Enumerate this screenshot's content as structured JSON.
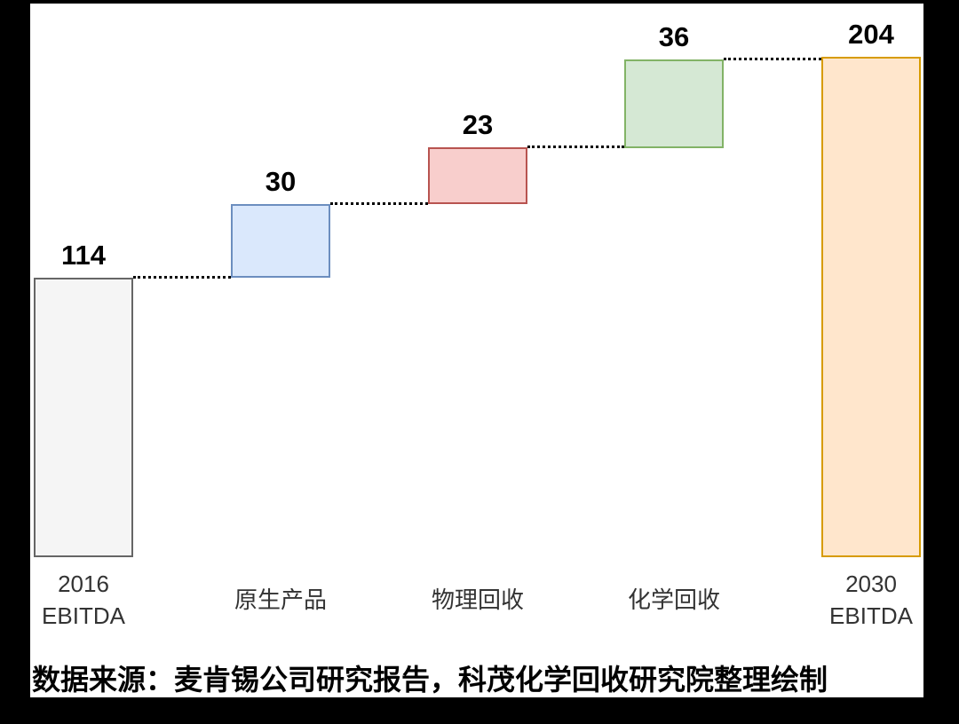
{
  "page": {
    "background": "#000000",
    "panel_background": "#ffffff"
  },
  "source_note": "数据来源：麦肯锡公司研究报告，科茂化学回收研究院整理绘制",
  "chart_data": {
    "type": "bar",
    "subtype": "waterfall",
    "title": "",
    "xlabel": "",
    "ylabel": "",
    "axes_visible": false,
    "grid": false,
    "legend": false,
    "ylim": [
      0,
      204
    ],
    "categories": [
      "2016 EBITDA",
      "原生产品",
      "物理回收",
      "化学回收",
      "2030 EBITDA"
    ],
    "values": [
      114,
      30,
      23,
      36,
      204
    ],
    "bars": [
      {
        "id": "2016-ebitda",
        "label": "2016\nEBITDA",
        "value": 114,
        "role": "base",
        "start": 0,
        "end": 114,
        "fill": "#f5f5f5",
        "stroke": "#666666"
      },
      {
        "id": "virgin-products",
        "label": "原生产品",
        "value": 30,
        "role": "increase",
        "start": 114,
        "end": 144,
        "fill": "#dae8fc",
        "stroke": "#6c8ebf"
      },
      {
        "id": "mechanical-recycling",
        "label": "物理回收",
        "value": 23,
        "role": "increase",
        "start": 144,
        "end": 167,
        "fill": "#f8cecc",
        "stroke": "#b85450"
      },
      {
        "id": "chemical-recycling",
        "label": "化学回收",
        "value": 36,
        "role": "increase",
        "start": 167,
        "end": 203,
        "fill": "#d5e8d4",
        "stroke": "#82b366"
      },
      {
        "id": "2030-ebitda",
        "label": "2030\nEBITDA",
        "value": 204,
        "role": "total",
        "start": 0,
        "end": 204,
        "fill": "#ffe6cc",
        "stroke": "#d79b00"
      }
    ],
    "connector_style": "dotted",
    "connector_color": "#000000",
    "value_label_color": "#000000",
    "category_label_color": "#333333"
  }
}
